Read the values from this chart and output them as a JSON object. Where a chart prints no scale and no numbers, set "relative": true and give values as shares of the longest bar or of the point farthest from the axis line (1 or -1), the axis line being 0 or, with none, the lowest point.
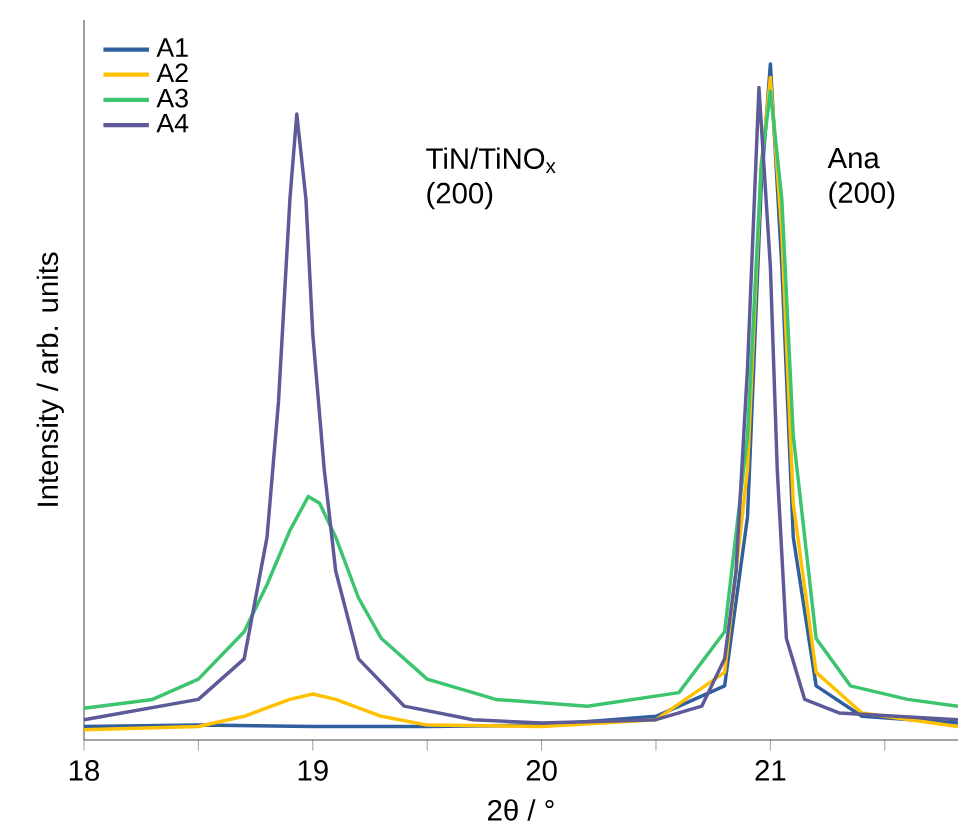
{
  "chart_data": {
    "type": "line",
    "relative": true,
    "xlabel": "2θ / °",
    "ylabel": "Intensity / arb. units",
    "xlim": [
      18,
      21.82
    ],
    "xticks": [
      18,
      {
        "value": 18.5,
        "label": null
      },
      19,
      {
        "value": 19.5,
        "label": null
      },
      20,
      {
        "value": 20.5,
        "label": null
      },
      21,
      {
        "value": 21.5,
        "label": null
      }
    ],
    "legend": "top left",
    "grid": false,
    "marker": "none",
    "line_style": "solid",
    "annotations": [
      "TiN/TiNO$_{x}$ (200)",
      "Ana (200)"
    ],
    "series": [
      {
        "name": "A1",
        "color": "#2f5f9e",
        "x": [
          18,
          18.5,
          19,
          19.5,
          20,
          20.5,
          20.8,
          20.9,
          20.96,
          21.0,
          21.05,
          21.1,
          21.2,
          21.4,
          21.82
        ],
        "values": [
          0.02,
          0.022,
          0.02,
          0.02,
          0.022,
          0.035,
          0.08,
          0.33,
          0.82,
          1.0,
          0.7,
          0.3,
          0.08,
          0.035,
          0.025
        ]
      },
      {
        "name": "A2",
        "color": "#ffc000",
        "x": [
          18,
          18.5,
          18.7,
          18.9,
          19.0,
          19.1,
          19.3,
          19.5,
          20.0,
          20.5,
          20.8,
          20.9,
          20.96,
          21.0,
          21.05,
          21.1,
          21.2,
          21.4,
          21.82
        ],
        "values": [
          0.015,
          0.02,
          0.035,
          0.06,
          0.068,
          0.06,
          0.035,
          0.022,
          0.02,
          0.03,
          0.1,
          0.4,
          0.85,
          0.98,
          0.75,
          0.35,
          0.1,
          0.04,
          0.02
        ]
      },
      {
        "name": "A3",
        "color": "#3cc46e",
        "x": [
          18,
          18.3,
          18.5,
          18.7,
          18.8,
          18.9,
          18.98,
          19.03,
          19.1,
          19.2,
          19.3,
          19.5,
          19.8,
          20.2,
          20.6,
          20.8,
          20.9,
          20.96,
          21.0,
          21.05,
          21.1,
          21.2,
          21.35,
          21.6,
          21.82
        ],
        "values": [
          0.047,
          0.06,
          0.09,
          0.16,
          0.23,
          0.31,
          0.36,
          0.35,
          0.3,
          0.21,
          0.15,
          0.09,
          0.06,
          0.05,
          0.07,
          0.16,
          0.45,
          0.85,
          0.96,
          0.8,
          0.45,
          0.15,
          0.08,
          0.06,
          0.05
        ]
      },
      {
        "name": "A4",
        "color": "#5c5a99",
        "x": [
          18,
          18.5,
          18.7,
          18.8,
          18.85,
          18.9,
          18.93,
          18.97,
          19.0,
          19.05,
          19.1,
          19.2,
          19.4,
          19.7,
          20,
          20.5,
          20.7,
          20.8,
          20.85,
          20.9,
          20.95,
          21.0,
          21.03,
          21.07,
          21.15,
          21.3,
          21.82
        ],
        "values": [
          0.03,
          0.06,
          0.12,
          0.3,
          0.5,
          0.8,
          0.926,
          0.8,
          0.6,
          0.4,
          0.25,
          0.12,
          0.05,
          0.03,
          0.025,
          0.03,
          0.05,
          0.12,
          0.25,
          0.55,
          0.965,
          0.7,
          0.4,
          0.15,
          0.06,
          0.04,
          0.03
        ]
      }
    ]
  }
}
